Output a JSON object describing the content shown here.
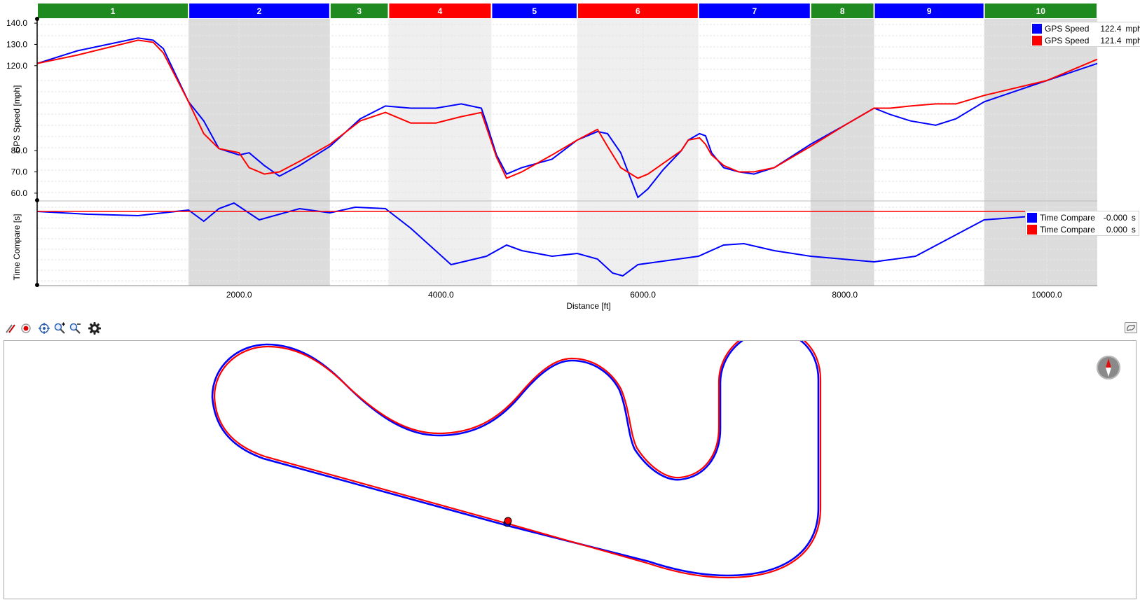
{
  "segments": [
    {
      "label": "1",
      "color": "#1f8a1f",
      "start": 0,
      "end": 1500
    },
    {
      "label": "2",
      "color": "#0000ff",
      "start": 1500,
      "end": 2900
    },
    {
      "label": "3",
      "color": "#1f8a1f",
      "start": 2900,
      "end": 3480
    },
    {
      "label": "4",
      "color": "#ff0000",
      "start": 3480,
      "end": 4500
    },
    {
      "label": "5",
      "color": "#0000ff",
      "start": 4500,
      "end": 5350
    },
    {
      "label": "6",
      "color": "#ff0000",
      "start": 5350,
      "end": 6550
    },
    {
      "label": "7",
      "color": "#0000ff",
      "start": 6550,
      "end": 7660
    },
    {
      "label": "8",
      "color": "#1f8a1f",
      "start": 7660,
      "end": 8290
    },
    {
      "label": "9",
      "color": "#0000ff",
      "start": 8290,
      "end": 9380
    },
    {
      "label": "10",
      "color": "#1f8a1f",
      "start": 9380,
      "end": 10500
    }
  ],
  "speed_chart": {
    "ylabel": "GPS Speed [mph]",
    "yticks": [
      "140.0",
      "130.0",
      "120.0",
      "80.0",
      "70.0",
      "60.0"
    ],
    "ytick_values": [
      140,
      130,
      120,
      80,
      70,
      60
    ]
  },
  "time_chart": {
    "ylabel": "Time Compare [s]"
  },
  "x_axis": {
    "label": "Distance [ft]",
    "ticks": [
      "2000.0",
      "4000.0",
      "6000.0",
      "8000.0",
      "10000.0"
    ],
    "tick_values": [
      2000,
      4000,
      6000,
      8000,
      10000
    ],
    "xlim": [
      0,
      10500
    ]
  },
  "speed_legend": [
    {
      "name": "GPS Speed",
      "value": "122.4",
      "unit": "mph",
      "color": "#0000ff"
    },
    {
      "name": "GPS Speed",
      "value": "121.4",
      "unit": "mph",
      "color": "#ff0000"
    }
  ],
  "time_legend": [
    {
      "name": "Time Compare",
      "value": "-0.000",
      "unit": "s",
      "color": "#0000ff"
    },
    {
      "name": "Time Compare",
      "value": "0.000",
      "unit": "s",
      "color": "#ff0000"
    }
  ],
  "toolbar": {
    "icons": [
      "draw-lines-icon",
      "record-icon",
      "center-target-icon",
      "zoom-in-icon",
      "zoom-out-icon",
      "settings-gear-icon"
    ]
  },
  "chart_data": [
    {
      "type": "line",
      "xlabel": "Distance [ft]",
      "ylabel": "GPS Speed [mph]",
      "xlim": [
        0,
        10500
      ],
      "ylim": [
        57,
        142
      ],
      "grid": true,
      "legend": "top-right",
      "series": [
        {
          "name": "GPS Speed",
          "color": "#0000ff",
          "x": [
            0,
            400,
            1000,
            1150,
            1250,
            1500,
            1650,
            1800,
            2000,
            2100,
            2250,
            2400,
            2600,
            2900,
            3200,
            3450,
            3700,
            3950,
            4200,
            4400,
            4450,
            4550,
            4650,
            4800,
            5100,
            5350,
            5550,
            5650,
            5780,
            5950,
            6050,
            6200,
            6380,
            6450,
            6560,
            6620,
            6680,
            6800,
            6950,
            7100,
            7300,
            7660,
            8000,
            8290,
            8450,
            8650,
            8900,
            9100,
            9380,
            10000,
            10500
          ],
          "y": [
            121,
            127,
            133,
            132,
            128,
            103,
            94,
            81,
            78,
            79,
            73,
            68,
            73,
            82,
            95,
            101,
            100,
            100,
            102,
            100,
            93,
            78,
            69,
            72,
            76,
            85,
            89,
            88,
            79,
            58,
            62,
            71,
            80,
            85,
            88,
            87,
            79,
            72,
            70,
            69,
            72,
            83,
            92,
            100,
            97,
            94,
            92,
            95,
            103,
            113,
            121
          ]
        },
        {
          "name": "GPS Speed",
          "color": "#ff0000",
          "x": [
            0,
            400,
            1000,
            1150,
            1250,
            1500,
            1650,
            1800,
            2000,
            2100,
            2250,
            2400,
            2600,
            2900,
            3200,
            3450,
            3700,
            3950,
            4200,
            4400,
            4450,
            4550,
            4650,
            4800,
            5100,
            5350,
            5550,
            5650,
            5780,
            5950,
            6050,
            6200,
            6380,
            6450,
            6560,
            6620,
            6680,
            6800,
            6950,
            7100,
            7300,
            7660,
            8000,
            8290,
            8450,
            8650,
            8900,
            9100,
            9380,
            10000,
            10500
          ],
          "y": [
            121,
            125,
            132,
            131,
            126,
            103,
            88,
            81,
            79,
            72,
            69,
            70,
            75,
            83,
            94,
            98,
            93,
            93,
            96,
            98,
            91,
            77,
            67,
            70,
            78,
            85,
            90,
            82,
            72,
            67,
            69,
            74,
            80,
            85,
            86,
            83,
            78,
            73,
            70,
            70,
            72,
            82,
            92,
            100,
            100,
            101,
            102,
            102,
            106,
            113,
            123
          ]
        }
      ]
    },
    {
      "type": "line",
      "xlabel": "Distance [ft]",
      "ylabel": "Time Compare [s]",
      "xlim": [
        0,
        10500
      ],
      "grid": true,
      "legend": "top-right",
      "series": [
        {
          "name": "Time Compare",
          "color": "#0000ff",
          "x": [
            0,
            500,
            1000,
            1500,
            1650,
            1800,
            1950,
            2200,
            2600,
            2900,
            3150,
            3450,
            3700,
            4100,
            4450,
            4650,
            4800,
            5100,
            5350,
            5550,
            5700,
            5800,
            5950,
            6150,
            6550,
            6800,
            7000,
            7300,
            7660,
            8290,
            8700,
            9380,
            10500
          ],
          "y": [
            0,
            -0.1,
            -0.15,
            0.05,
            -0.35,
            0.1,
            0.3,
            -0.3,
            0.1,
            -0.05,
            0.15,
            0.1,
            -0.6,
            -1.9,
            -1.6,
            -1.2,
            -1.4,
            -1.6,
            -1.5,
            -1.7,
            -2.2,
            -2.3,
            -1.9,
            -1.8,
            -1.6,
            -1.2,
            -1.15,
            -1.4,
            -1.6,
            -1.8,
            -1.6,
            -0.3,
            0
          ]
        },
        {
          "name": "Time Compare",
          "color": "#ff0000",
          "x": [
            0,
            10500
          ],
          "y": [
            0,
            0
          ]
        }
      ]
    }
  ]
}
